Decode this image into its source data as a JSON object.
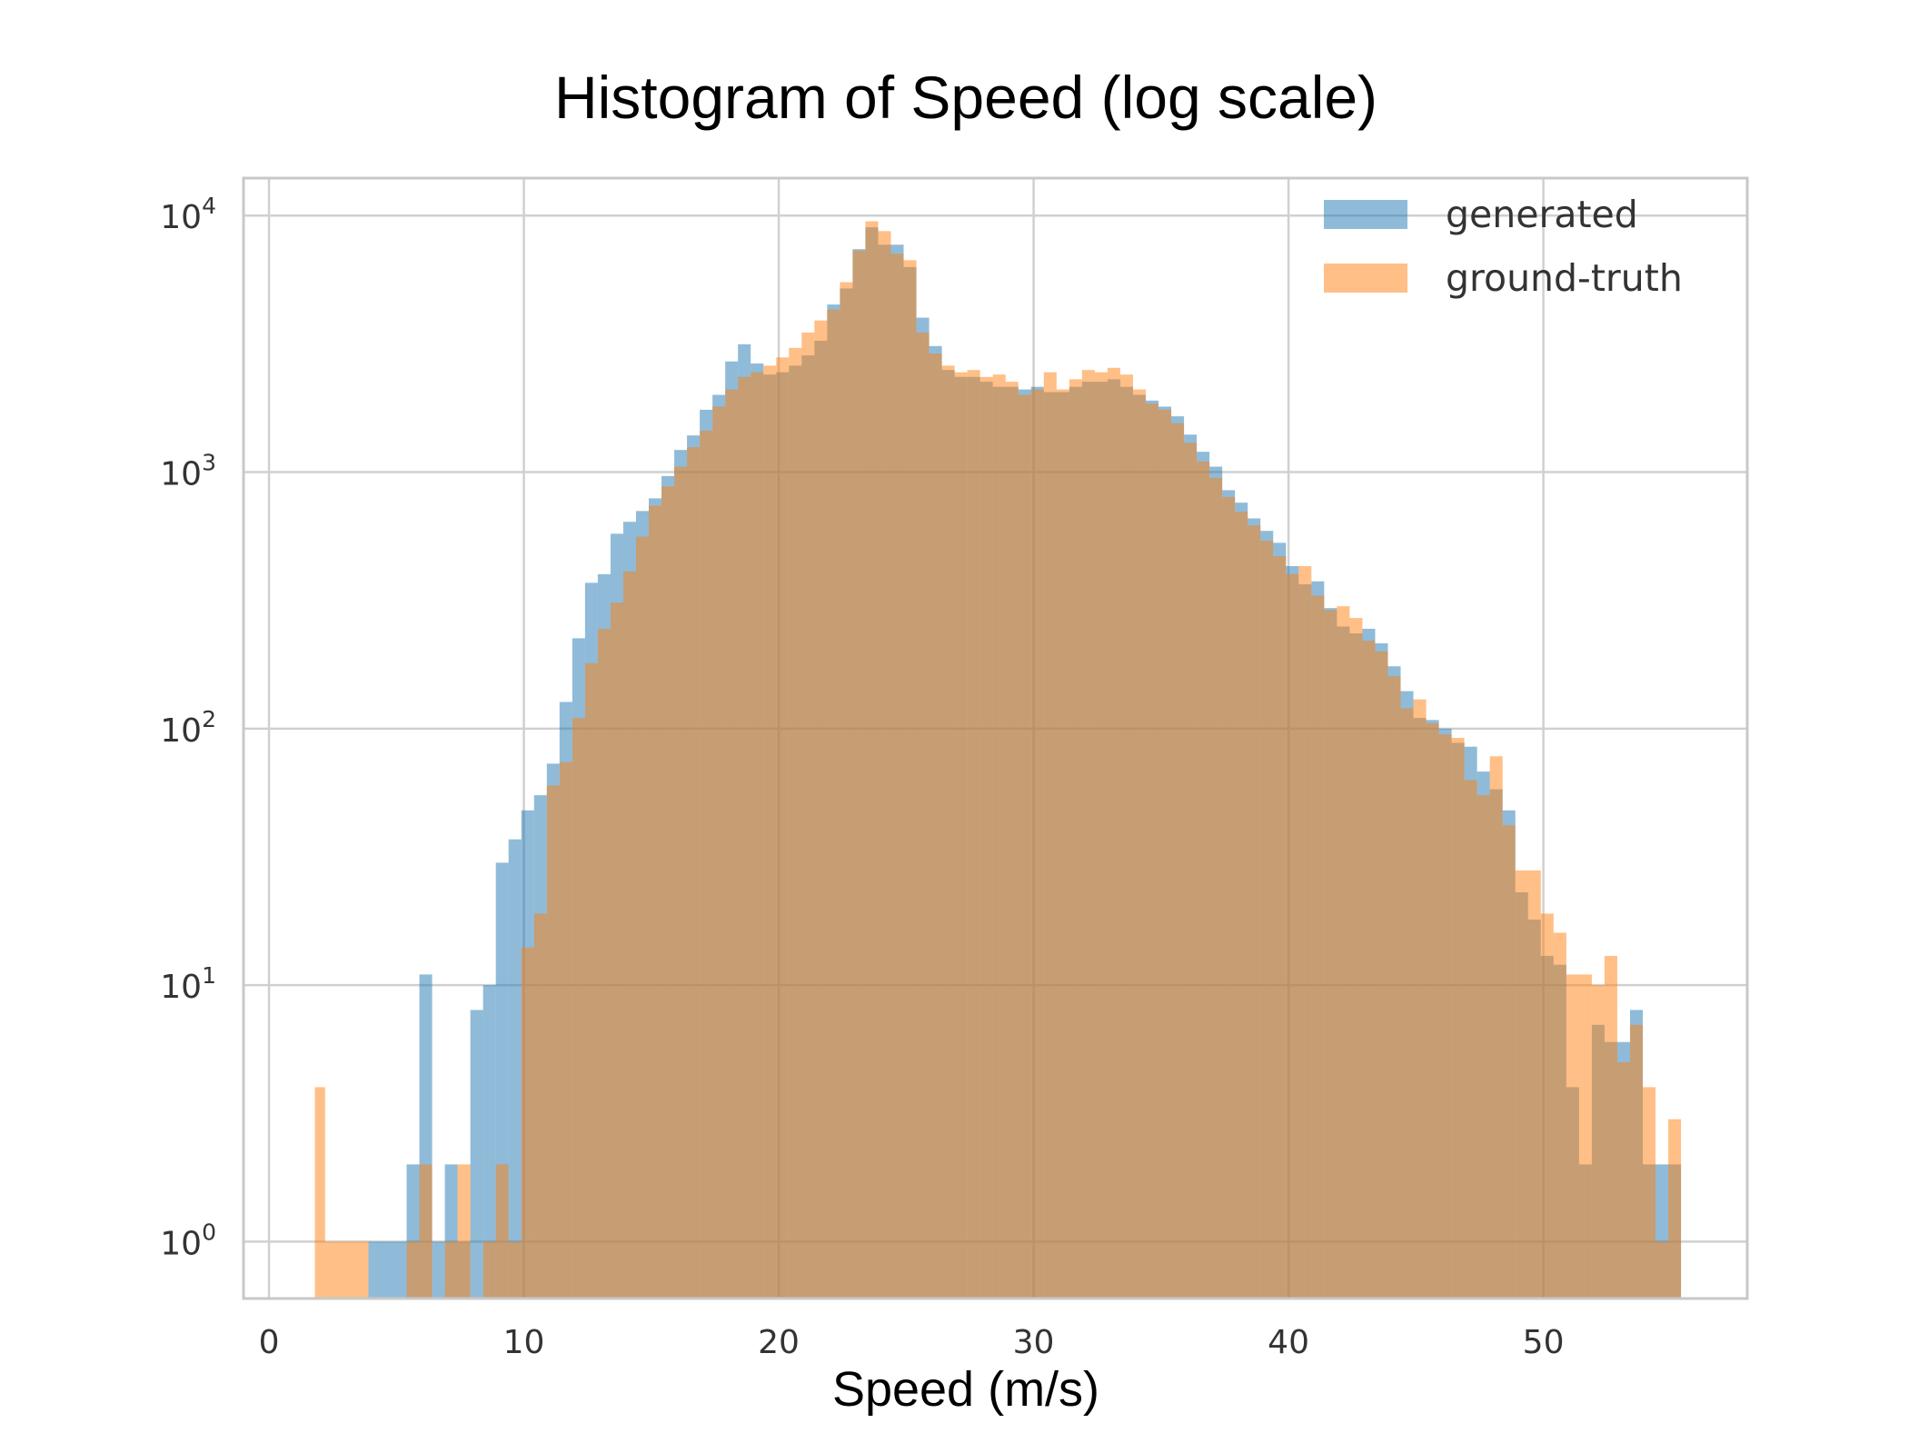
{
  "chart_data": {
    "type": "bar",
    "title": "Histogram of Speed (log scale)",
    "xlabel": "Speed (m/s)",
    "ylabel": "",
    "yscale": "log",
    "xlim": [
      -1,
      58
    ],
    "ylim": [
      0.6,
      14000
    ],
    "grid": true,
    "legend_position": "top-right",
    "x_ticks": [
      0,
      10,
      20,
      30,
      40,
      50
    ],
    "y_ticks": [
      {
        "value": 1,
        "base": "10",
        "exp": "0"
      },
      {
        "value": 10,
        "base": "10",
        "exp": "1"
      },
      {
        "value": 100,
        "base": "10",
        "exp": "2"
      },
      {
        "value": 1000,
        "base": "10",
        "exp": "3"
      },
      {
        "value": 10000,
        "base": "10",
        "exp": "4"
      }
    ],
    "series": [
      {
        "name": "generated",
        "color": "#1f77b4",
        "alpha": 0.5,
        "bins": [
          [
            3.9,
            4.4,
            1
          ],
          [
            4.4,
            4.9,
            1
          ],
          [
            4.9,
            5.4,
            1
          ],
          [
            5.4,
            5.9,
            2
          ],
          [
            5.9,
            6.4,
            11
          ],
          [
            6.4,
            6.9,
            1
          ],
          [
            6.9,
            7.4,
            2
          ],
          [
            7.4,
            7.9,
            1
          ],
          [
            7.9,
            8.4,
            8
          ],
          [
            8.4,
            8.9,
            10
          ],
          [
            8.9,
            9.4,
            30
          ],
          [
            9.4,
            9.9,
            37
          ],
          [
            9.9,
            10.4,
            48
          ],
          [
            10.4,
            10.9,
            55
          ],
          [
            10.9,
            11.4,
            73
          ],
          [
            11.4,
            11.9,
            127
          ],
          [
            11.9,
            12.4,
            225
          ],
          [
            12.4,
            12.9,
            370
          ],
          [
            12.9,
            13.4,
            400
          ],
          [
            13.4,
            13.9,
            575
          ],
          [
            13.9,
            14.4,
            640
          ],
          [
            14.4,
            14.9,
            705
          ],
          [
            14.9,
            15.4,
            790
          ],
          [
            15.4,
            15.9,
            965
          ],
          [
            15.9,
            16.4,
            1220
          ],
          [
            16.4,
            16.9,
            1390
          ],
          [
            16.9,
            17.4,
            1750
          ],
          [
            17.4,
            17.9,
            2000
          ],
          [
            17.9,
            18.4,
            2700
          ],
          [
            18.4,
            18.9,
            3150
          ],
          [
            18.9,
            19.4,
            2650
          ],
          [
            19.4,
            19.9,
            2400
          ],
          [
            19.9,
            20.4,
            2450
          ],
          [
            20.4,
            20.9,
            2600
          ],
          [
            20.9,
            21.4,
            2850
          ],
          [
            21.4,
            21.9,
            3250
          ],
          [
            21.9,
            22.4,
            4500
          ],
          [
            22.4,
            22.9,
            5200
          ],
          [
            22.9,
            23.4,
            7400
          ],
          [
            23.4,
            23.9,
            9000
          ],
          [
            23.9,
            24.4,
            7700
          ],
          [
            24.4,
            24.9,
            7700
          ],
          [
            24.9,
            25.4,
            6300
          ],
          [
            25.4,
            25.9,
            4000
          ],
          [
            25.9,
            26.4,
            3100
          ],
          [
            26.4,
            26.9,
            2500
          ],
          [
            26.9,
            27.4,
            2350
          ],
          [
            27.4,
            27.9,
            2350
          ],
          [
            27.9,
            28.4,
            2250
          ],
          [
            28.4,
            28.9,
            2150
          ],
          [
            28.9,
            29.4,
            2150
          ],
          [
            29.4,
            29.9,
            2100
          ],
          [
            29.9,
            30.4,
            2150
          ],
          [
            30.4,
            30.9,
            2050
          ],
          [
            30.9,
            31.4,
            2050
          ],
          [
            31.4,
            31.9,
            2150
          ],
          [
            31.9,
            32.4,
            2250
          ],
          [
            32.4,
            32.9,
            2250
          ],
          [
            32.9,
            33.4,
            2300
          ],
          [
            33.4,
            33.9,
            2150
          ],
          [
            33.9,
            34.4,
            2000
          ],
          [
            34.4,
            34.9,
            1900
          ],
          [
            34.9,
            35.4,
            1800
          ],
          [
            35.4,
            35.9,
            1650
          ],
          [
            35.9,
            36.4,
            1400
          ],
          [
            36.4,
            36.9,
            1200
          ],
          [
            36.9,
            37.4,
            1050
          ],
          [
            37.4,
            37.9,
            850
          ],
          [
            37.9,
            38.4,
            760
          ],
          [
            38.4,
            38.9,
            660
          ],
          [
            38.9,
            39.4,
            590
          ],
          [
            39.4,
            39.9,
            530
          ],
          [
            39.9,
            40.4,
            430
          ],
          [
            40.4,
            40.9,
            365
          ],
          [
            40.9,
            41.4,
            375
          ],
          [
            41.4,
            41.9,
            295
          ],
          [
            41.9,
            42.4,
            250
          ],
          [
            42.4,
            42.9,
            235
          ],
          [
            42.9,
            43.4,
            245
          ],
          [
            43.4,
            43.9,
            215
          ],
          [
            43.9,
            44.4,
            175
          ],
          [
            44.4,
            44.9,
            140
          ],
          [
            44.9,
            45.4,
            110
          ],
          [
            45.4,
            45.9,
            108
          ],
          [
            45.9,
            46.4,
            100
          ],
          [
            46.4,
            46.9,
            88
          ],
          [
            46.9,
            47.4,
            85
          ],
          [
            47.4,
            47.9,
            68
          ],
          [
            47.9,
            48.4,
            58
          ],
          [
            48.4,
            48.9,
            48
          ],
          [
            48.9,
            49.4,
            23
          ],
          [
            49.4,
            49.9,
            18
          ],
          [
            49.9,
            50.4,
            13
          ],
          [
            50.4,
            50.9,
            12
          ],
          [
            50.9,
            51.4,
            4
          ],
          [
            51.4,
            51.9,
            2
          ],
          [
            51.9,
            52.4,
            7
          ],
          [
            52.4,
            52.9,
            6
          ],
          [
            52.9,
            53.4,
            6
          ],
          [
            53.4,
            53.9,
            8
          ],
          [
            53.9,
            54.4,
            2
          ],
          [
            54.4,
            54.9,
            2
          ],
          [
            54.9,
            55.4,
            2
          ]
        ]
      },
      {
        "name": "ground-truth",
        "color": "#ff7f0e",
        "alpha": 0.5,
        "bins": [
          [
            1.8,
            2.2,
            4
          ],
          [
            2.2,
            3.9,
            1
          ],
          [
            5.4,
            5.9,
            1
          ],
          [
            5.9,
            6.4,
            2
          ],
          [
            6.9,
            7.4,
            1
          ],
          [
            7.4,
            7.9,
            2
          ],
          [
            8.4,
            8.9,
            1
          ],
          [
            8.9,
            9.4,
            2
          ],
          [
            9.4,
            9.9,
            1
          ],
          [
            9.9,
            10.4,
            14
          ],
          [
            10.4,
            10.9,
            19
          ],
          [
            10.9,
            11.4,
            60
          ],
          [
            11.4,
            11.9,
            74
          ],
          [
            11.9,
            12.4,
            110
          ],
          [
            12.4,
            12.9,
            180
          ],
          [
            12.9,
            13.4,
            245
          ],
          [
            13.4,
            13.9,
            310
          ],
          [
            13.9,
            14.4,
            410
          ],
          [
            14.4,
            14.9,
            560
          ],
          [
            14.9,
            15.4,
            740
          ],
          [
            15.4,
            15.9,
            880
          ],
          [
            15.9,
            16.4,
            1050
          ],
          [
            16.4,
            16.9,
            1250
          ],
          [
            16.9,
            17.4,
            1450
          ],
          [
            17.4,
            17.9,
            1800
          ],
          [
            17.9,
            18.4,
            2100
          ],
          [
            18.4,
            18.9,
            2350
          ],
          [
            18.9,
            19.4,
            2450
          ],
          [
            19.4,
            19.9,
            2600
          ],
          [
            19.9,
            20.4,
            2800
          ],
          [
            20.4,
            20.9,
            3050
          ],
          [
            20.9,
            21.4,
            3500
          ],
          [
            21.4,
            21.9,
            3900
          ],
          [
            21.9,
            22.4,
            4300
          ],
          [
            22.4,
            22.9,
            5500
          ],
          [
            22.9,
            23.4,
            7300
          ],
          [
            23.4,
            23.9,
            9500
          ],
          [
            23.9,
            24.4,
            8700
          ],
          [
            24.4,
            24.9,
            7100
          ],
          [
            24.9,
            25.4,
            6700
          ],
          [
            25.4,
            25.9,
            3500
          ],
          [
            25.9,
            26.4,
            2900
          ],
          [
            26.4,
            26.9,
            2600
          ],
          [
            26.9,
            27.4,
            2450
          ],
          [
            27.4,
            27.9,
            2500
          ],
          [
            27.9,
            28.4,
            2350
          ],
          [
            28.4,
            28.9,
            2400
          ],
          [
            28.9,
            29.4,
            2250
          ],
          [
            29.4,
            29.9,
            2000
          ],
          [
            29.9,
            30.4,
            2100
          ],
          [
            30.4,
            30.9,
            2450
          ],
          [
            30.9,
            31.4,
            2100
          ],
          [
            31.4,
            31.9,
            2300
          ],
          [
            31.9,
            32.4,
            2500
          ],
          [
            32.4,
            32.9,
            2450
          ],
          [
            32.9,
            33.4,
            2550
          ],
          [
            33.4,
            33.9,
            2400
          ],
          [
            33.9,
            34.4,
            2100
          ],
          [
            34.4,
            34.9,
            1850
          ],
          [
            34.9,
            35.4,
            1750
          ],
          [
            35.4,
            35.9,
            1550
          ],
          [
            35.9,
            36.4,
            1300
          ],
          [
            36.4,
            36.9,
            1100
          ],
          [
            36.9,
            37.4,
            950
          ],
          [
            37.4,
            37.9,
            800
          ],
          [
            37.9,
            38.4,
            700
          ],
          [
            38.4,
            38.9,
            620
          ],
          [
            38.9,
            39.4,
            540
          ],
          [
            39.4,
            39.9,
            470
          ],
          [
            39.9,
            40.4,
            400
          ],
          [
            40.4,
            40.9,
            430
          ],
          [
            40.9,
            41.4,
            330
          ],
          [
            41.4,
            41.9,
            290
          ],
          [
            41.9,
            42.4,
            300
          ],
          [
            42.4,
            42.9,
            270
          ],
          [
            42.9,
            43.4,
            220
          ],
          [
            43.4,
            43.9,
            200
          ],
          [
            43.9,
            44.4,
            160
          ],
          [
            44.4,
            44.9,
            120
          ],
          [
            44.9,
            45.4,
            130
          ],
          [
            45.4,
            45.9,
            105
          ],
          [
            45.9,
            46.4,
            95
          ],
          [
            46.4,
            46.9,
            92
          ],
          [
            46.9,
            47.4,
            63
          ],
          [
            47.4,
            47.9,
            55
          ],
          [
            47.9,
            48.4,
            78
          ],
          [
            48.4,
            48.9,
            42
          ],
          [
            48.9,
            49.4,
            28
          ],
          [
            49.4,
            49.9,
            28
          ],
          [
            49.9,
            50.4,
            19
          ],
          [
            50.4,
            50.9,
            16
          ],
          [
            50.9,
            51.4,
            11
          ],
          [
            51.4,
            51.9,
            11
          ],
          [
            51.9,
            52.4,
            10
          ],
          [
            52.4,
            52.9,
            13
          ],
          [
            52.9,
            53.4,
            5
          ],
          [
            53.4,
            53.9,
            7
          ],
          [
            53.9,
            54.4,
            4
          ],
          [
            54.4,
            54.9,
            1
          ],
          [
            54.9,
            55.4,
            3
          ]
        ]
      }
    ]
  }
}
